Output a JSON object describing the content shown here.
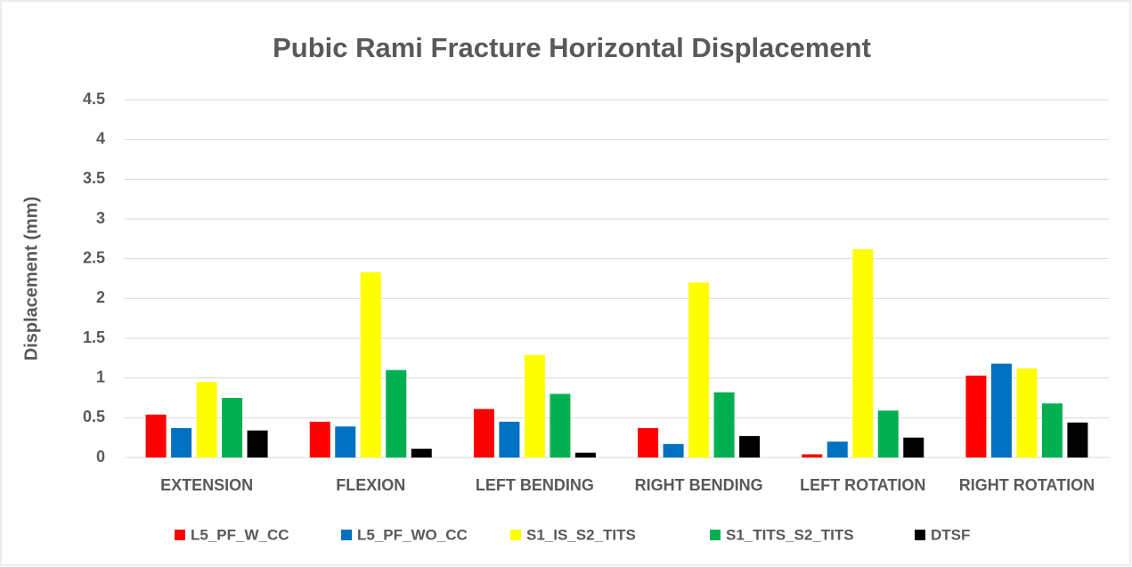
{
  "chart_data": {
    "type": "bar",
    "title": "Pubic Rami Fracture Horizontal Displacement",
    "y_label": "Displacement (mm)",
    "categories": [
      "EXTENSION",
      "FLEXION",
      "LEFT BENDING",
      "RIGHT BENDING",
      "LEFT ROTATION",
      "RIGHT ROTATION"
    ],
    "series": [
      {
        "name": "L5_PF_W_CC",
        "color": "#ff0000",
        "values": [
          0.54,
          0.45,
          0.61,
          0.37,
          0.04,
          1.03
        ]
      },
      {
        "name": "L5_PF_WO_CC",
        "color": "#0070c0",
        "values": [
          0.37,
          0.39,
          0.45,
          0.17,
          0.2,
          1.18
        ]
      },
      {
        "name": "S1_IS_S2_TITS",
        "color": "#ffff00",
        "values": [
          0.95,
          2.33,
          1.29,
          2.2,
          2.62,
          1.12
        ]
      },
      {
        "name": "S1_TITS_S2_TITS",
        "color": "#00b050",
        "values": [
          0.75,
          1.1,
          0.8,
          0.82,
          0.59,
          0.68
        ]
      },
      {
        "name": "DTSF",
        "color": "#000000",
        "values": [
          0.34,
          0.11,
          0.06,
          0.27,
          0.25,
          0.44
        ]
      }
    ],
    "ylim": [
      0,
      4.5
    ],
    "yticks": [
      0,
      0.5,
      1,
      1.5,
      2,
      2.5,
      3,
      3.5,
      4,
      4.5
    ],
    "grid": true,
    "legend": "bottom"
  }
}
